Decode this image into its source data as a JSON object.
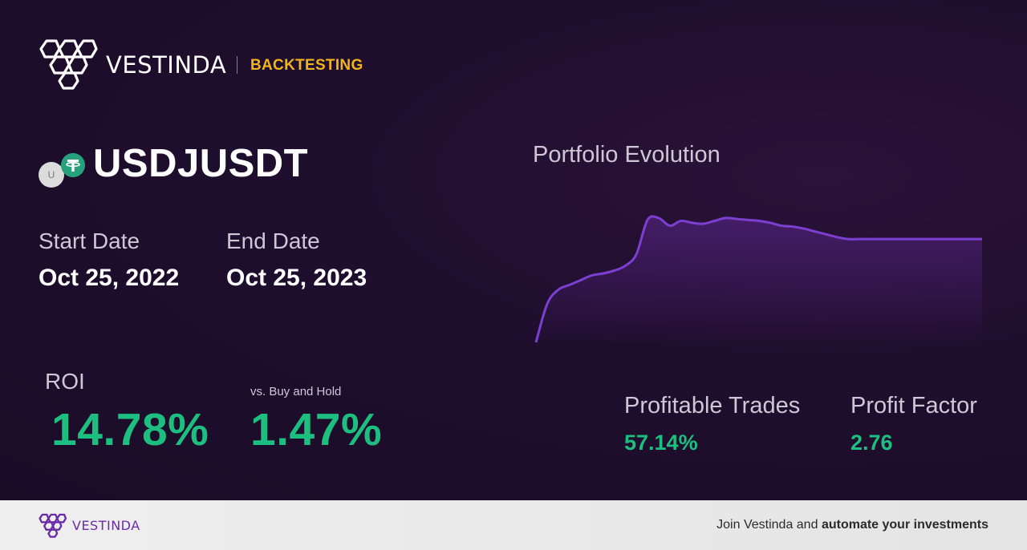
{
  "header": {
    "brand": "VESTINDA",
    "product": "BACKTESTING"
  },
  "asset": {
    "pair": "USDJUSDT",
    "base_coin_letter": "U",
    "quote_coin_letter": "T"
  },
  "dates": {
    "start_label": "Start Date",
    "start_value": "Oct 25, 2022",
    "end_label": "End Date",
    "end_value": "Oct 25, 2023"
  },
  "performance": {
    "roi_label": "ROI",
    "roi_value": "14.78%",
    "buy_hold_label": "vs. Buy and Hold",
    "buy_hold_value": "1.47%"
  },
  "chart_data": {
    "type": "area",
    "title": "Portfolio Evolution",
    "xlabel": "",
    "ylabel": "",
    "x": [
      0,
      1,
      2,
      3,
      4,
      5,
      6,
      7,
      8,
      9,
      10,
      11,
      12,
      13,
      14,
      15,
      16,
      17,
      18,
      19,
      20,
      21,
      22,
      23,
      24,
      25,
      26,
      27,
      28,
      29,
      30,
      31,
      32,
      33,
      34,
      35,
      36,
      37,
      38,
      39,
      40
    ],
    "values": [
      0,
      0.4,
      0.55,
      0.6,
      0.65,
      0.7,
      0.72,
      0.75,
      0.8,
      0.92,
      1.28,
      1.3,
      1.22,
      1.27,
      1.25,
      1.24,
      1.27,
      1.3,
      1.29,
      1.28,
      1.27,
      1.25,
      1.22,
      1.21,
      1.19,
      1.16,
      1.13,
      1.1,
      1.08,
      1.08,
      1.08,
      1.08,
      1.08,
      1.08,
      1.08,
      1.08,
      1.08,
      1.08,
      1.08,
      1.08,
      1.08
    ],
    "ylim": [
      0,
      1.4
    ],
    "grid": false,
    "line_color": "#7c3fd1"
  },
  "stats": {
    "profitable_label": "Profitable Trades",
    "profitable_value": "57.14%",
    "factor_label": "Profit Factor",
    "factor_value": "2.76"
  },
  "footer": {
    "brand": "VESTINDA",
    "cta_prefix": "Join Vestinda and",
    "cta_emphasis": "automate your investments"
  },
  "colors": {
    "accent": "#f2b41b",
    "positive": "#1cbf7f",
    "background": "#1e0f2c",
    "brand_purple": "#6a2ca7"
  }
}
